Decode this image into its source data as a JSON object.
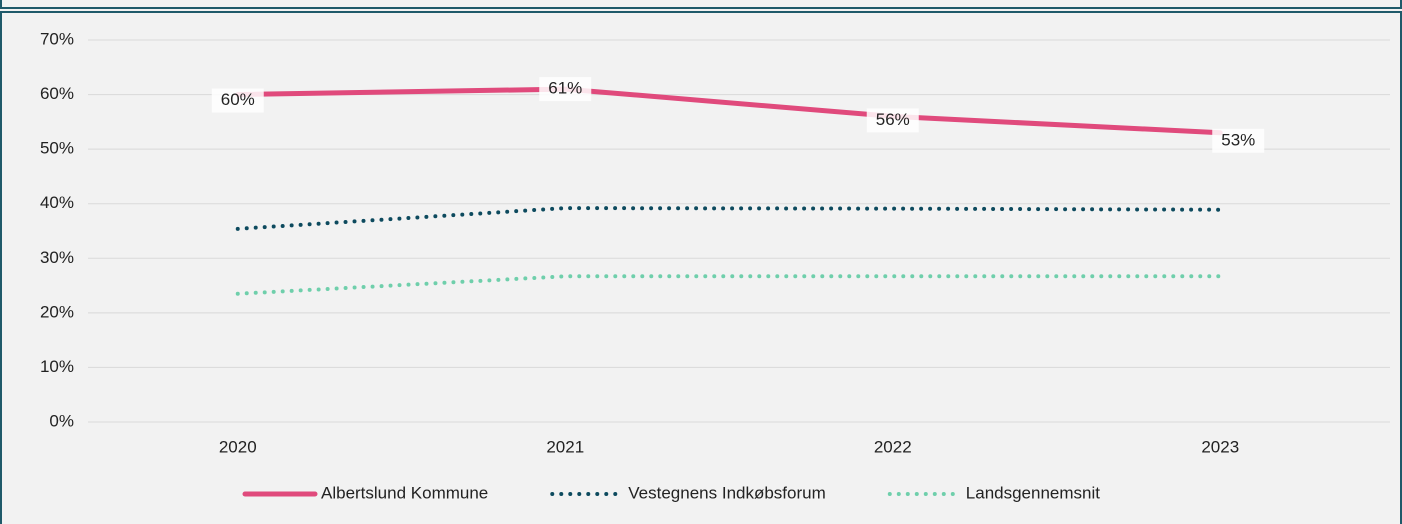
{
  "chart_data": {
    "type": "line",
    "categories": [
      "2020",
      "2021",
      "2022",
      "2023"
    ],
    "series": [
      {
        "name": "Albertslund Kommune",
        "color": "#e04a7c",
        "style": "solid",
        "values": [
          60,
          61,
          56,
          53
        ],
        "value_labels": [
          "60%",
          "61%",
          "56%",
          "53%"
        ]
      },
      {
        "name": "Vestegnens Indkøbsforum",
        "color": "#0d4a5e",
        "style": "dotted",
        "values": [
          35.4,
          39.2,
          39.1,
          38.9
        ]
      },
      {
        "name": "Landsgennemsnit",
        "color": "#6fcfab",
        "style": "dotted",
        "values": [
          23.5,
          26.7,
          26.7,
          26.7
        ]
      }
    ],
    "ylim": [
      0,
      70
    ],
    "yticks": [
      {
        "value": 0,
        "label": "0%"
      },
      {
        "value": 10,
        "label": "10%"
      },
      {
        "value": 20,
        "label": "20%"
      },
      {
        "value": 30,
        "label": "30%"
      },
      {
        "value": 40,
        "label": "40%"
      },
      {
        "value": 50,
        "label": "50%"
      },
      {
        "value": 60,
        "label": "60%"
      },
      {
        "value": 70,
        "label": "70%"
      }
    ],
    "grid": true,
    "legend": "bottom"
  }
}
